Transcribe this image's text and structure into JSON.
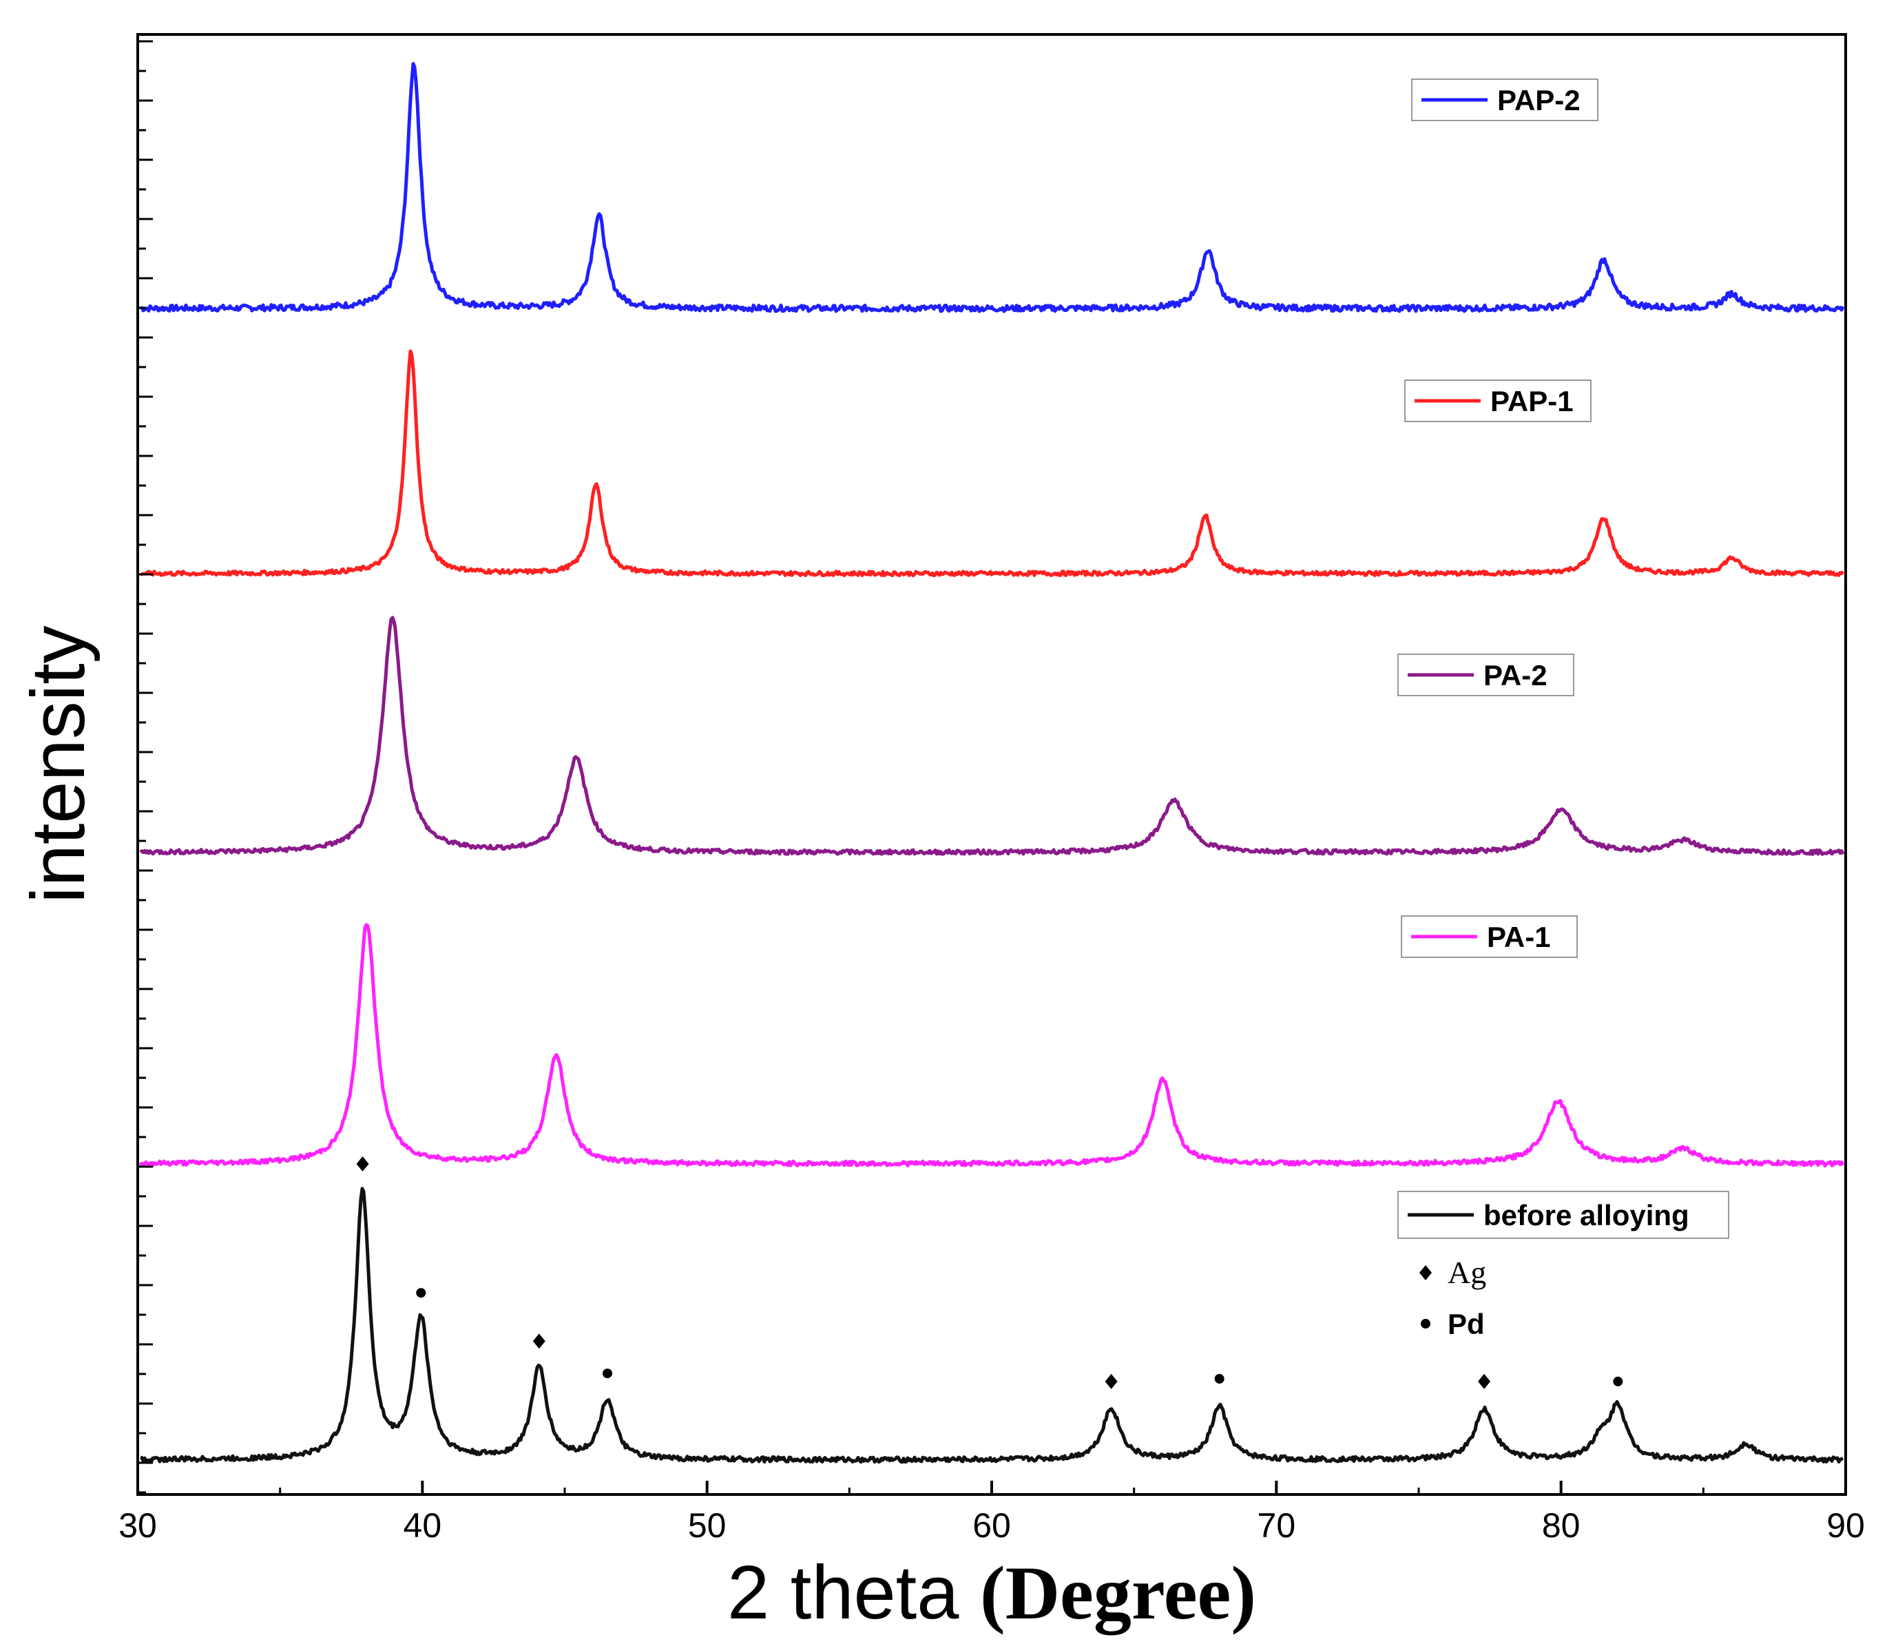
{
  "chart_data": {
    "type": "line",
    "title": "",
    "xlabel_part1": "2 theta ",
    "xlabel_part2": "(Degree)",
    "ylabel": "intensity",
    "xlim": [
      30,
      90
    ],
    "xticks": [
      30,
      40,
      50,
      60,
      70,
      80,
      90
    ],
    "yticks_visible": false,
    "series": [
      {
        "name": "PAP-2",
        "color": "#1f1fff",
        "baseline": 4,
        "peaks": [
          {
            "x": 39.7,
            "height": 100,
            "width": 0.28
          },
          {
            "x": 46.2,
            "height": 38,
            "width": 0.3
          },
          {
            "x": 67.6,
            "height": 24,
            "width": 0.32
          },
          {
            "x": 81.5,
            "height": 20,
            "width": 0.35
          },
          {
            "x": 86.0,
            "height": 6,
            "width": 0.35
          }
        ]
      },
      {
        "name": "PAP-1",
        "color": "#ff2020",
        "baseline": 3,
        "peaks": [
          {
            "x": 39.6,
            "height": 100,
            "width": 0.26
          },
          {
            "x": 46.1,
            "height": 40,
            "width": 0.28
          },
          {
            "x": 67.5,
            "height": 26,
            "width": 0.3
          },
          {
            "x": 81.5,
            "height": 25,
            "width": 0.35
          },
          {
            "x": 86.0,
            "height": 7,
            "width": 0.35
          }
        ]
      },
      {
        "name": "PA-2",
        "color": "#8b1a8b",
        "baseline": 3,
        "peaks": [
          {
            "x": 38.95,
            "height": 100,
            "width": 0.42
          },
          {
            "x": 45.4,
            "height": 40,
            "width": 0.45
          },
          {
            "x": 66.4,
            "height": 22,
            "width": 0.55
          },
          {
            "x": 80.0,
            "height": 18,
            "width": 0.6
          },
          {
            "x": 84.3,
            "height": 5,
            "width": 0.6
          }
        ]
      },
      {
        "name": "PA-1",
        "color": "#ff22ff",
        "baseline": 3,
        "peaks": [
          {
            "x": 38.05,
            "height": 100,
            "width": 0.38
          },
          {
            "x": 44.7,
            "height": 45,
            "width": 0.4
          },
          {
            "x": 66.0,
            "height": 35,
            "width": 0.42
          },
          {
            "x": 79.9,
            "height": 26,
            "width": 0.55
          },
          {
            "x": 84.3,
            "height": 6,
            "width": 0.55
          }
        ]
      },
      {
        "name": "before alloying",
        "color": "#111111",
        "baseline": 3,
        "peaks": [
          {
            "x": 37.9,
            "height": 100,
            "width": 0.3
          },
          {
            "x": 39.95,
            "height": 52,
            "width": 0.33
          },
          {
            "x": 44.1,
            "height": 34,
            "width": 0.33
          },
          {
            "x": 46.5,
            "height": 22,
            "width": 0.33
          },
          {
            "x": 64.2,
            "height": 19,
            "width": 0.38
          },
          {
            "x": 68.0,
            "height": 20,
            "width": 0.35
          },
          {
            "x": 77.3,
            "height": 19,
            "width": 0.4
          },
          {
            "x": 81.4,
            "height": 7,
            "width": 0.4
          },
          {
            "x": 82.0,
            "height": 19,
            "width": 0.35
          },
          {
            "x": 86.5,
            "height": 6,
            "width": 0.4
          }
        ],
        "markers": [
          {
            "x": 37.9,
            "phase": "Ag"
          },
          {
            "x": 39.95,
            "phase": "Pd"
          },
          {
            "x": 44.1,
            "phase": "Ag"
          },
          {
            "x": 46.5,
            "phase": "Pd"
          },
          {
            "x": 64.2,
            "phase": "Ag"
          },
          {
            "x": 68.0,
            "phase": "Pd"
          },
          {
            "x": 77.3,
            "phase": "Ag"
          },
          {
            "x": 82.0,
            "phase": "Pd"
          }
        ]
      }
    ],
    "phase_legend": [
      {
        "symbol": "diamond",
        "label": "Ag"
      },
      {
        "symbol": "dot",
        "label": "Pd"
      }
    ]
  }
}
